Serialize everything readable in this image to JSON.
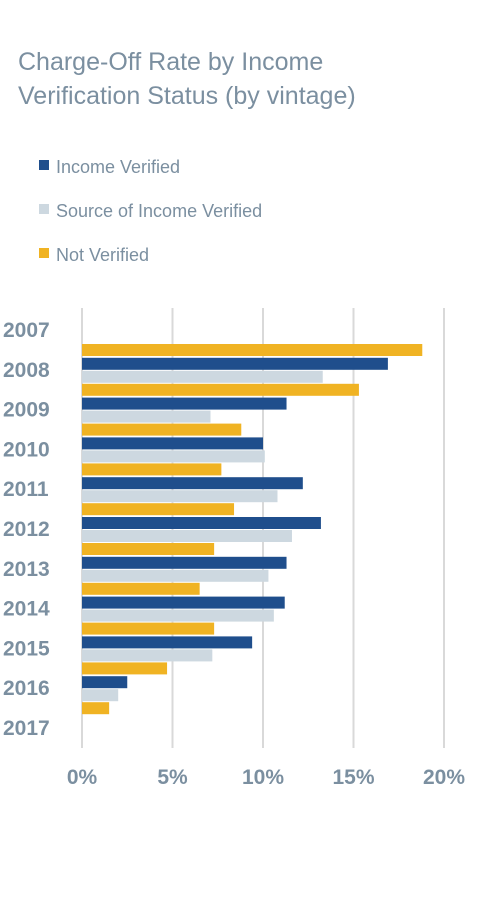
{
  "chart_data": {
    "type": "bar",
    "orientation": "horizontal",
    "title_lines": [
      "Charge-Off Rate by Income",
      "Verification Status (by vintage)"
    ],
    "categories": [
      "2007",
      "2008",
      "2009",
      "2010",
      "2011",
      "2012",
      "2013",
      "2014",
      "2015",
      "2016",
      "2017"
    ],
    "series": [
      {
        "name": "Income Verified",
        "color": "#1f4e8c",
        "values": [
          null,
          16.9,
          11.3,
          10.0,
          12.2,
          13.2,
          11.3,
          11.2,
          9.4,
          2.5,
          null
        ]
      },
      {
        "name": "Source of Income Verified",
        "color": "#cdd8e0",
        "values": [
          null,
          13.3,
          7.1,
          10.1,
          10.8,
          11.6,
          10.3,
          10.6,
          7.2,
          2.0,
          null
        ]
      },
      {
        "name": "Not Verified",
        "color": "#f0b323",
        "values": [
          18.8,
          15.3,
          8.8,
          7.7,
          8.4,
          7.3,
          6.5,
          7.3,
          4.7,
          1.5,
          null
        ]
      }
    ],
    "xaxis": {
      "ticks": [
        0,
        5,
        10,
        15,
        20
      ],
      "tick_labels": [
        "0%",
        "5%",
        "10%",
        "15%",
        "20%"
      ],
      "range": [
        0,
        20
      ]
    },
    "grid": true,
    "legend_position": "top-left"
  }
}
